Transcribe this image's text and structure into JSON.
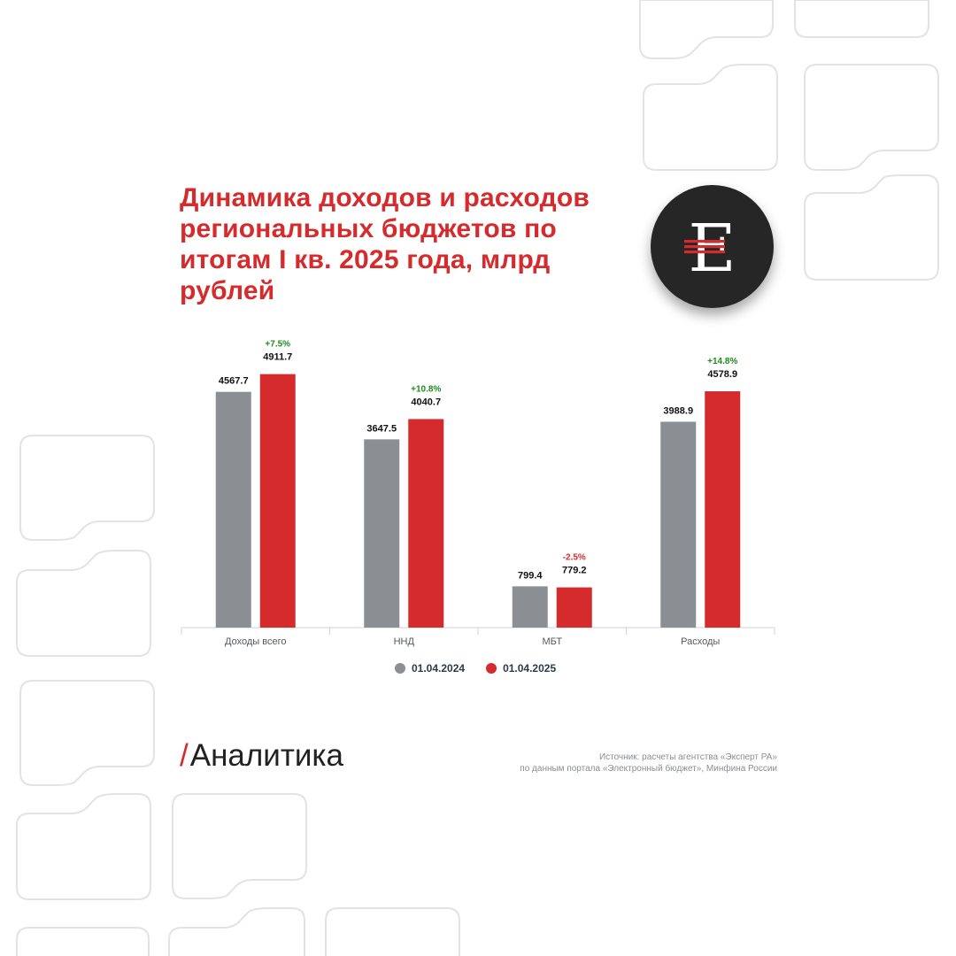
{
  "header": {
    "title": "Динамика доходов и расходов региональных бюджетов по итогам I кв. 2025 года, млрд рублей"
  },
  "logo": {
    "letter": "E",
    "icon": "expert-logo-icon"
  },
  "colors": {
    "accent_red": "#d62b2d",
    "bar_grey": "#8b8f93",
    "bar_red": "#d62b2d",
    "positive_change": "#1d8a1d",
    "negative_change": "#d62b2d",
    "decoration_outline": "#e3e3e3"
  },
  "chart_data": {
    "type": "bar",
    "categories": [
      "Доходы всего",
      "ННД",
      "МБТ",
      "Расходы"
    ],
    "series": [
      {
        "name": "01.04.2024",
        "values": [
          4567.7,
          3647.5,
          799.4,
          3988.9
        ],
        "color": "#8b8f93",
        "labels": [
          "4567.7",
          "3647.5",
          "799.4",
          "3988.9"
        ]
      },
      {
        "name": "01.04.2025",
        "values": [
          4911.7,
          4040.7,
          779.2,
          4578.9
        ],
        "color": "#d62b2d",
        "labels": [
          "4911.7",
          "4040.7",
          "779.2",
          "4578.9"
        ]
      }
    ],
    "changes": [
      "+7.5%",
      "+10.8%",
      "-2.5%",
      "+14.8%"
    ],
    "ylim": [
      0,
      5300
    ],
    "grid": false,
    "legend_position": "bottom",
    "xlabel": "",
    "ylabel": ""
  },
  "footer": {
    "slash": "/",
    "section": "Аналитика",
    "source_line1": "Источник: расчеты агентства «Эксперт РА»",
    "source_line2": "по данным портала «Электронный бюджет», Минфина России"
  }
}
